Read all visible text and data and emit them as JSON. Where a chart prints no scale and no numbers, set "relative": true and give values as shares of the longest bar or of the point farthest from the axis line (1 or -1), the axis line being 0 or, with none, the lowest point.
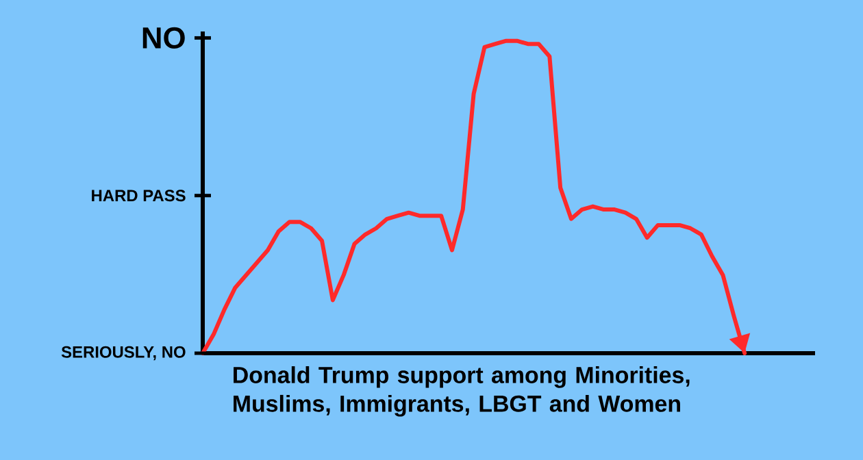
{
  "chart_data": {
    "type": "line",
    "xlabel": "Donald Trump support among Minorities, Muslims, Immigrants, LBGT and Women",
    "categories": [
      null,
      null,
      null,
      null,
      null,
      null,
      null,
      null,
      null,
      null,
      null,
      null,
      null,
      null,
      null,
      null,
      null,
      null,
      null,
      null,
      null,
      null,
      null,
      null,
      null,
      null,
      null,
      null,
      null,
      null,
      null,
      null,
      null,
      null,
      null,
      null,
      null,
      null,
      null,
      null,
      null,
      null,
      null,
      null,
      null,
      null,
      null,
      null,
      null,
      null,
      null
    ],
    "series": [
      {
        "color": "#ff2a2a",
        "values": [
          0,
          0.06,
          0.14,
          0.21,
          0.25,
          0.29,
          0.33,
          0.39,
          0.42,
          0.42,
          0.4,
          0.36,
          0.17,
          0.25,
          0.35,
          0.38,
          0.4,
          0.43,
          0.44,
          0.45,
          0.44,
          0.44,
          0.44,
          0.33,
          0.46,
          0.83,
          0.98,
          0.99,
          1,
          1,
          0.99,
          0.99,
          0.95,
          0.53,
          0.43,
          0.46,
          0.47,
          0.46,
          0.46,
          0.45,
          0.43,
          0.37,
          0.41,
          0.41,
          0.41,
          0.4,
          0.38,
          0.31,
          0.25,
          0.12,
          0
        ]
      }
    ],
    "relative": true,
    "annotations": [
      "SERIOUSLY, NO",
      "HARD PASS",
      "NO"
    ],
    "grid": false
  }
}
